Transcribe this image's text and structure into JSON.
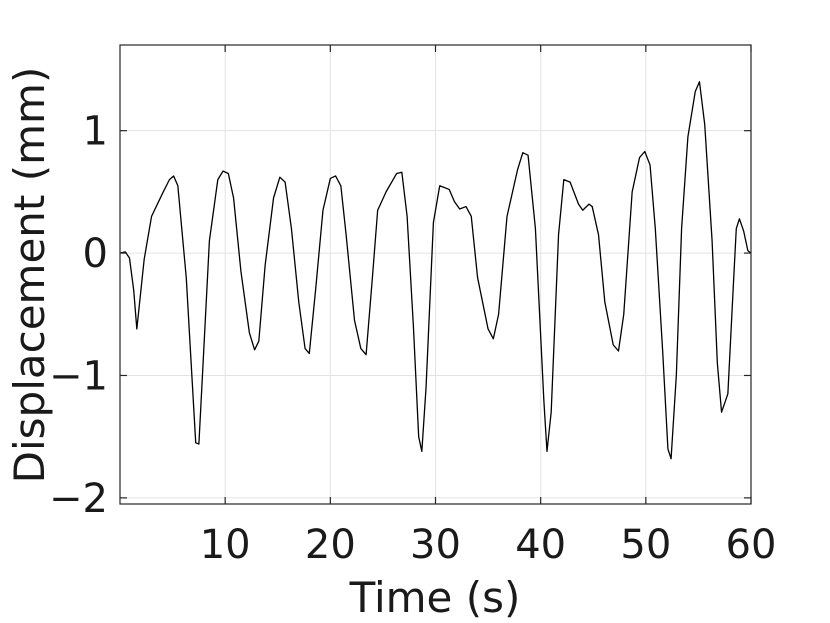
{
  "chart_data": {
    "type": "line",
    "title": "",
    "xlabel": "Time (s)",
    "ylabel": "Displacement (mm)",
    "xlim": [
      0,
      60
    ],
    "ylim": [
      -2.05,
      1.7
    ],
    "xticks": [
      10,
      20,
      30,
      40,
      50,
      60
    ],
    "yticks": [
      -2,
      -1,
      0,
      1
    ],
    "xtick_labels": [
      "10",
      "20",
      "30",
      "40",
      "50",
      "60"
    ],
    "ytick_labels": [
      "−2",
      "−1",
      "0",
      "1"
    ],
    "grid": true,
    "legend": "none",
    "colors": {
      "line": "#000000",
      "grid": "#e3e3e3",
      "axes": "#262626"
    },
    "series": [
      {
        "x": [
          0,
          0.5,
          0.9,
          1.3,
          1.6,
          2.3,
          3.0,
          4.0,
          4.7,
          5.1,
          5.5,
          6.3,
          6.9,
          7.2,
          7.5,
          7.9,
          8.5,
          9.3,
          9.8,
          10.3,
          10.8,
          11.5,
          12.3,
          12.8,
          13.2,
          13.8,
          14.6,
          15.2,
          15.7,
          16.3,
          17.0,
          17.6,
          18.0,
          18.6,
          19.3,
          20.0,
          20.5,
          21.0,
          21.5,
          22.3,
          22.9,
          23.4,
          24.0,
          24.5,
          25.3,
          26.3,
          26.8,
          27.3,
          27.9,
          28.4,
          28.7,
          29.1,
          29.8,
          30.4,
          31.3,
          31.8,
          32.3,
          32.9,
          33.4,
          34.0,
          35.0,
          35.5,
          36.0,
          36.8,
          37.8,
          38.3,
          38.8,
          39.5,
          40.3,
          40.6,
          41.0,
          41.7,
          42.2,
          42.8,
          43.6,
          44.0,
          44.6,
          44.9,
          45.5,
          46.1,
          46.9,
          47.4,
          47.9,
          48.7,
          49.4,
          49.9,
          50.4,
          50.9,
          51.6,
          52.1,
          52.4,
          52.9,
          53.4,
          54.0,
          54.7,
          55.1,
          55.6,
          56.3,
          56.8,
          57.2,
          57.8,
          58.3,
          58.6,
          58.9,
          59.3,
          59.7,
          60.0
        ],
        "values": [
          0.0,
          0.01,
          -0.04,
          -0.3,
          -0.62,
          -0.05,
          0.3,
          0.48,
          0.6,
          0.63,
          0.55,
          -0.2,
          -1.1,
          -1.55,
          -1.56,
          -0.9,
          0.1,
          0.6,
          0.67,
          0.65,
          0.45,
          -0.15,
          -0.65,
          -0.79,
          -0.72,
          -0.1,
          0.45,
          0.62,
          0.58,
          0.2,
          -0.4,
          -0.78,
          -0.82,
          -0.3,
          0.35,
          0.61,
          0.63,
          0.55,
          0.15,
          -0.55,
          -0.78,
          -0.83,
          -0.2,
          0.35,
          0.5,
          0.65,
          0.66,
          0.3,
          -0.6,
          -1.5,
          -1.62,
          -1.1,
          0.25,
          0.55,
          0.52,
          0.42,
          0.36,
          0.38,
          0.3,
          -0.2,
          -0.62,
          -0.7,
          -0.5,
          0.3,
          0.68,
          0.82,
          0.8,
          0.2,
          -1.2,
          -1.62,
          -1.3,
          0.15,
          0.6,
          0.58,
          0.4,
          0.35,
          0.4,
          0.38,
          0.15,
          -0.4,
          -0.75,
          -0.8,
          -0.5,
          0.5,
          0.78,
          0.83,
          0.72,
          0.2,
          -0.8,
          -1.6,
          -1.68,
          -1.0,
          0.2,
          0.95,
          1.32,
          1.4,
          1.05,
          0.1,
          -0.9,
          -1.3,
          -1.15,
          -0.3,
          0.2,
          0.28,
          0.18,
          0.02,
          0.0
        ]
      }
    ]
  }
}
